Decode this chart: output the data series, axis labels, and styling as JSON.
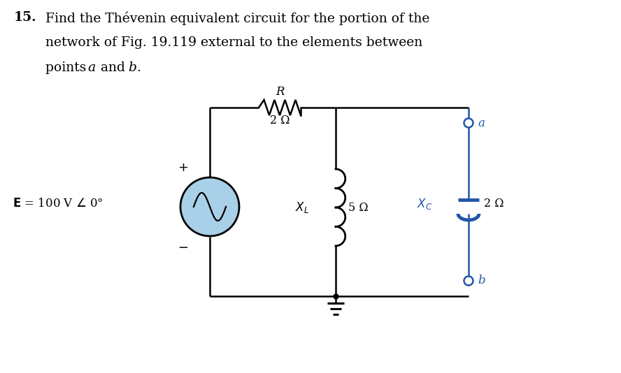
{
  "bg_color": "#ffffff",
  "text_color": "#000000",
  "blue_color": "#2255aa",
  "problem_number": "15.",
  "problem_text_line1": "Find the Thévenin equivalent circuit for the portion of the",
  "problem_text_line2": "network of Fig. 19.119 external to the elements between",
  "problem_text_line3a": "points ",
  "problem_text_line3b": "a",
  "problem_text_line3c": " and ",
  "problem_text_line3d": "b",
  "problem_text_line3e": ".",
  "source_facecolor": "#a8d0e8",
  "R_label": "R",
  "R_value": "2 Ω",
  "XL_value": "5 Ω",
  "XC_value": "2 Ω",
  "point_a": "a",
  "point_b": "b"
}
